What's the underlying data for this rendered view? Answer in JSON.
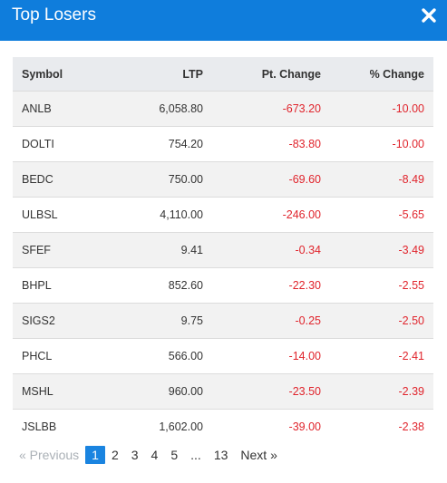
{
  "modal": {
    "title": "Top Losers",
    "close_icon": "close-x-icon",
    "header_color": "#0f7ddc"
  },
  "table": {
    "headers": [
      "Symbol",
      "LTP",
      "Pt. Change",
      "% Change"
    ],
    "rows": [
      {
        "symbol": "ANLB",
        "ltp": "6,058.80",
        "pt_change": "-673.20",
        "pct_change": "-10.00"
      },
      {
        "symbol": "DOLTI",
        "ltp": "754.20",
        "pt_change": "-83.80",
        "pct_change": "-10.00"
      },
      {
        "symbol": "BEDC",
        "ltp": "750.00",
        "pt_change": "-69.60",
        "pct_change": "-8.49"
      },
      {
        "symbol": "ULBSL",
        "ltp": "4,110.00",
        "pt_change": "-246.00",
        "pct_change": "-5.65"
      },
      {
        "symbol": "SFEF",
        "ltp": "9.41",
        "pt_change": "-0.34",
        "pct_change": "-3.49"
      },
      {
        "symbol": "BHPL",
        "ltp": "852.60",
        "pt_change": "-22.30",
        "pct_change": "-2.55"
      },
      {
        "symbol": "SIGS2",
        "ltp": "9.75",
        "pt_change": "-0.25",
        "pct_change": "-2.50"
      },
      {
        "symbol": "PHCL",
        "ltp": "566.00",
        "pt_change": "-14.00",
        "pct_change": "-2.41"
      },
      {
        "symbol": "MSHL",
        "ltp": "960.00",
        "pt_change": "-23.50",
        "pct_change": "-2.39"
      },
      {
        "symbol": "JSLBB",
        "ltp": "1,602.00",
        "pt_change": "-39.00",
        "pct_change": "-2.38"
      }
    ],
    "negative_color": "#e0242c"
  },
  "pagination": {
    "previous": "« Previous",
    "pages": [
      "1",
      "2",
      "3",
      "4",
      "5"
    ],
    "ellipsis": "...",
    "last_page": "13",
    "next": "Next »",
    "active_page": "1"
  }
}
